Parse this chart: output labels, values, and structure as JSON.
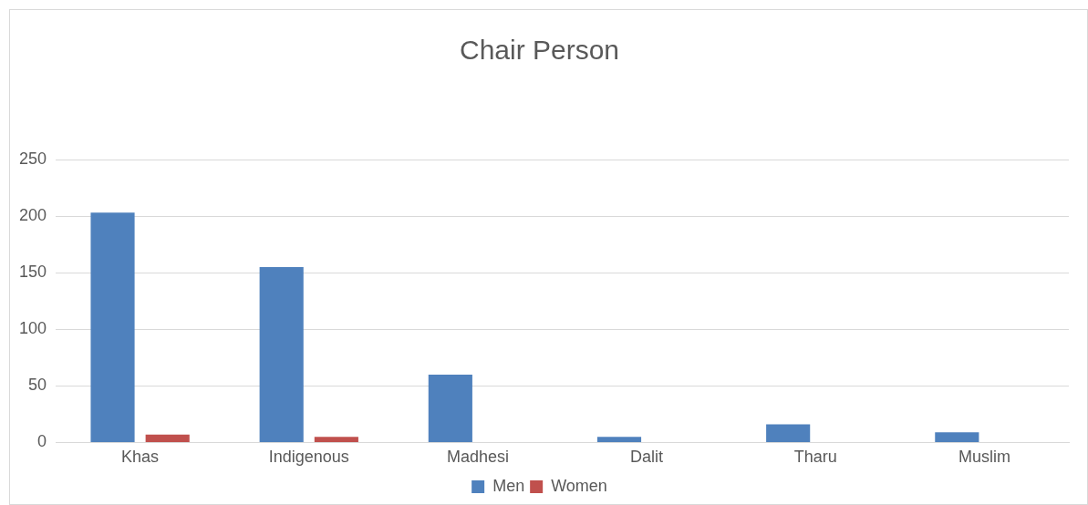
{
  "chart_data": {
    "type": "bar",
    "title": "Chair Person",
    "categories": [
      "Khas",
      "Indigenous",
      "Madhesi",
      "Dalit",
      "Tharu",
      "Muslim"
    ],
    "series": [
      {
        "name": "Men",
        "color": "#4f81bd",
        "values": [
          203,
          155,
          60,
          5,
          16,
          9
        ]
      },
      {
        "name": "Women",
        "color": "#c0504d",
        "values": [
          7,
          5,
          0,
          0,
          0,
          0
        ]
      }
    ],
    "ylim": [
      0,
      250
    ],
    "yticks": [
      0,
      50,
      100,
      150,
      200,
      250
    ],
    "grid": "y",
    "legend": "bottom"
  }
}
